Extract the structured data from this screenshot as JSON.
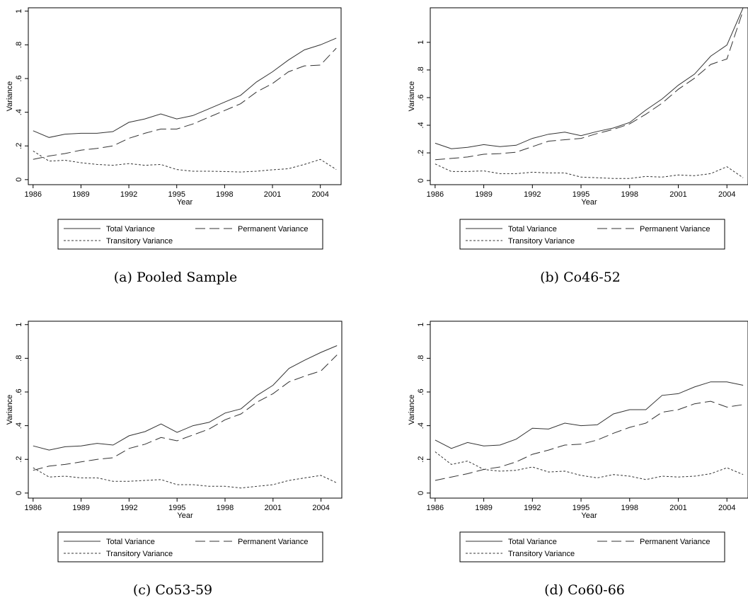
{
  "figure": {
    "ylabel": "Variance",
    "xlabel": "Year",
    "legend": [
      "Total Variance",
      "Permanent Variance",
      "Transitory Variance"
    ]
  },
  "chart_data": [
    {
      "type": "line",
      "caption": "(a)  Pooled Sample",
      "xlabel": "Year",
      "ylabel": "Variance",
      "x": [
        1986,
        1987,
        1988,
        1989,
        1990,
        1991,
        1992,
        1993,
        1994,
        1995,
        1996,
        1997,
        1998,
        1999,
        2000,
        2001,
        2002,
        2003,
        2004,
        2005
      ],
      "xticks": [
        1986,
        1989,
        1992,
        1995,
        1998,
        2001,
        2004
      ],
      "xlim": [
        1985.7,
        2005.3
      ],
      "ylim": [
        -0.03,
        1.02
      ],
      "yticks": [
        0,
        0.2,
        0.4,
        0.6,
        0.8,
        1
      ],
      "ytick_labels": [
        "0",
        ".2",
        ".4",
        ".6",
        ".8",
        "1"
      ],
      "series": [
        {
          "name": "Total Variance",
          "values": [
            0.29,
            0.25,
            0.27,
            0.275,
            0.275,
            0.285,
            0.34,
            0.36,
            0.39,
            0.36,
            0.38,
            0.42,
            0.46,
            0.5,
            0.58,
            0.64,
            0.71,
            0.77,
            0.8,
            0.84
          ]
        },
        {
          "name": "Permanent Variance",
          "values": [
            0.12,
            0.14,
            0.155,
            0.175,
            0.185,
            0.2,
            0.245,
            0.275,
            0.3,
            0.3,
            0.33,
            0.37,
            0.41,
            0.45,
            0.52,
            0.57,
            0.64,
            0.675,
            0.68,
            0.78
          ]
        },
        {
          "name": "Transitory Variance",
          "values": [
            0.17,
            0.11,
            0.115,
            0.1,
            0.09,
            0.085,
            0.095,
            0.085,
            0.09,
            0.06,
            0.05,
            0.05,
            0.048,
            0.045,
            0.05,
            0.058,
            0.065,
            0.09,
            0.12,
            0.06
          ]
        }
      ]
    },
    {
      "type": "line",
      "caption": "(b)  Co46-52",
      "xlabel": "Year",
      "ylabel": "Variance",
      "x": [
        1986,
        1987,
        1988,
        1989,
        1990,
        1991,
        1992,
        1993,
        1994,
        1995,
        1996,
        1997,
        1998,
        1999,
        2000,
        2001,
        2002,
        2003,
        2004,
        2005
      ],
      "xticks": [
        1986,
        1989,
        1992,
        1995,
        1998,
        2001,
        2004
      ],
      "xlim": [
        1985.7,
        2005.3
      ],
      "ylim": [
        -0.03,
        1.25
      ],
      "yticks": [
        0,
        0.2,
        0.4,
        0.6,
        0.8,
        1
      ],
      "ytick_labels": [
        "0",
        ".2",
        ".4",
        ".6",
        ".8",
        "1"
      ],
      "series": [
        {
          "name": "Total Variance",
          "values": [
            0.27,
            0.23,
            0.24,
            0.26,
            0.245,
            0.255,
            0.305,
            0.335,
            0.35,
            0.325,
            0.355,
            0.38,
            0.42,
            0.51,
            0.59,
            0.69,
            0.77,
            0.9,
            0.98,
            1.25
          ]
        },
        {
          "name": "Permanent Variance",
          "values": [
            0.15,
            0.16,
            0.17,
            0.19,
            0.195,
            0.205,
            0.245,
            0.285,
            0.295,
            0.305,
            0.34,
            0.37,
            0.41,
            0.48,
            0.56,
            0.66,
            0.74,
            0.84,
            0.88,
            1.23
          ]
        },
        {
          "name": "Transitory Variance",
          "values": [
            0.12,
            0.065,
            0.065,
            0.07,
            0.05,
            0.05,
            0.06,
            0.055,
            0.055,
            0.025,
            0.02,
            0.015,
            0.015,
            0.03,
            0.025,
            0.04,
            0.035,
            0.05,
            0.1,
            0.02
          ]
        }
      ]
    },
    {
      "type": "line",
      "caption": "(c)  Co53-59",
      "xlabel": "Year",
      "ylabel": "Variance",
      "x": [
        1986,
        1987,
        1988,
        1989,
        1990,
        1991,
        1992,
        1993,
        1994,
        1995,
        1996,
        1997,
        1998,
        1999,
        2000,
        2001,
        2002,
        2003,
        2004,
        2005
      ],
      "xticks": [
        1986,
        1989,
        1992,
        1995,
        1998,
        2001,
        2004
      ],
      "xlim": [
        1985.7,
        2005.3
      ],
      "ylim": [
        -0.03,
        1.02
      ],
      "yticks": [
        0,
        0.2,
        0.4,
        0.6,
        0.8,
        1
      ],
      "ytick_labels": [
        "0",
        ".2",
        ".4",
        ".6",
        ".8",
        "1"
      ],
      "series": [
        {
          "name": "Total Variance",
          "values": [
            0.28,
            0.255,
            0.275,
            0.28,
            0.295,
            0.285,
            0.34,
            0.365,
            0.41,
            0.36,
            0.4,
            0.42,
            0.475,
            0.5,
            0.58,
            0.64,
            0.74,
            0.79,
            0.835,
            0.875
          ]
        },
        {
          "name": "Permanent Variance",
          "values": [
            0.135,
            0.16,
            0.17,
            0.185,
            0.2,
            0.21,
            0.265,
            0.29,
            0.33,
            0.31,
            0.345,
            0.38,
            0.435,
            0.47,
            0.54,
            0.59,
            0.66,
            0.695,
            0.725,
            0.82
          ]
        },
        {
          "name": "Transitory Variance",
          "values": [
            0.15,
            0.095,
            0.1,
            0.09,
            0.09,
            0.07,
            0.07,
            0.075,
            0.08,
            0.05,
            0.05,
            0.04,
            0.04,
            0.03,
            0.04,
            0.05,
            0.075,
            0.09,
            0.105,
            0.06
          ]
        }
      ]
    },
    {
      "type": "line",
      "caption": "(d)  Co60-66",
      "xlabel": "Year",
      "ylabel": "Variance",
      "x": [
        1986,
        1987,
        1988,
        1989,
        1990,
        1991,
        1992,
        1993,
        1994,
        1995,
        1996,
        1997,
        1998,
        1999,
        2000,
        2001,
        2002,
        2003,
        2004,
        2005
      ],
      "xticks": [
        1986,
        1989,
        1992,
        1995,
        1998,
        2001,
        2004
      ],
      "xlim": [
        1985.7,
        2005.3
      ],
      "ylim": [
        -0.03,
        1.02
      ],
      "yticks": [
        0,
        0.2,
        0.4,
        0.6,
        0.8,
        1
      ],
      "ytick_labels": [
        "0",
        ".2",
        ".4",
        ".6",
        ".8",
        "1"
      ],
      "series": [
        {
          "name": "Total Variance",
          "values": [
            0.315,
            0.265,
            0.3,
            0.28,
            0.285,
            0.32,
            0.385,
            0.38,
            0.415,
            0.4,
            0.405,
            0.47,
            0.495,
            0.495,
            0.58,
            0.59,
            0.63,
            0.66,
            0.66,
            0.64
          ]
        },
        {
          "name": "Permanent Variance",
          "values": [
            0.075,
            0.095,
            0.115,
            0.14,
            0.155,
            0.185,
            0.23,
            0.255,
            0.285,
            0.29,
            0.315,
            0.355,
            0.39,
            0.415,
            0.48,
            0.495,
            0.53,
            0.545,
            0.51,
            0.525
          ]
        },
        {
          "name": "Transitory Variance",
          "values": [
            0.245,
            0.17,
            0.19,
            0.14,
            0.13,
            0.135,
            0.155,
            0.125,
            0.13,
            0.105,
            0.09,
            0.11,
            0.1,
            0.08,
            0.1,
            0.095,
            0.1,
            0.115,
            0.15,
            0.11
          ]
        }
      ]
    }
  ]
}
